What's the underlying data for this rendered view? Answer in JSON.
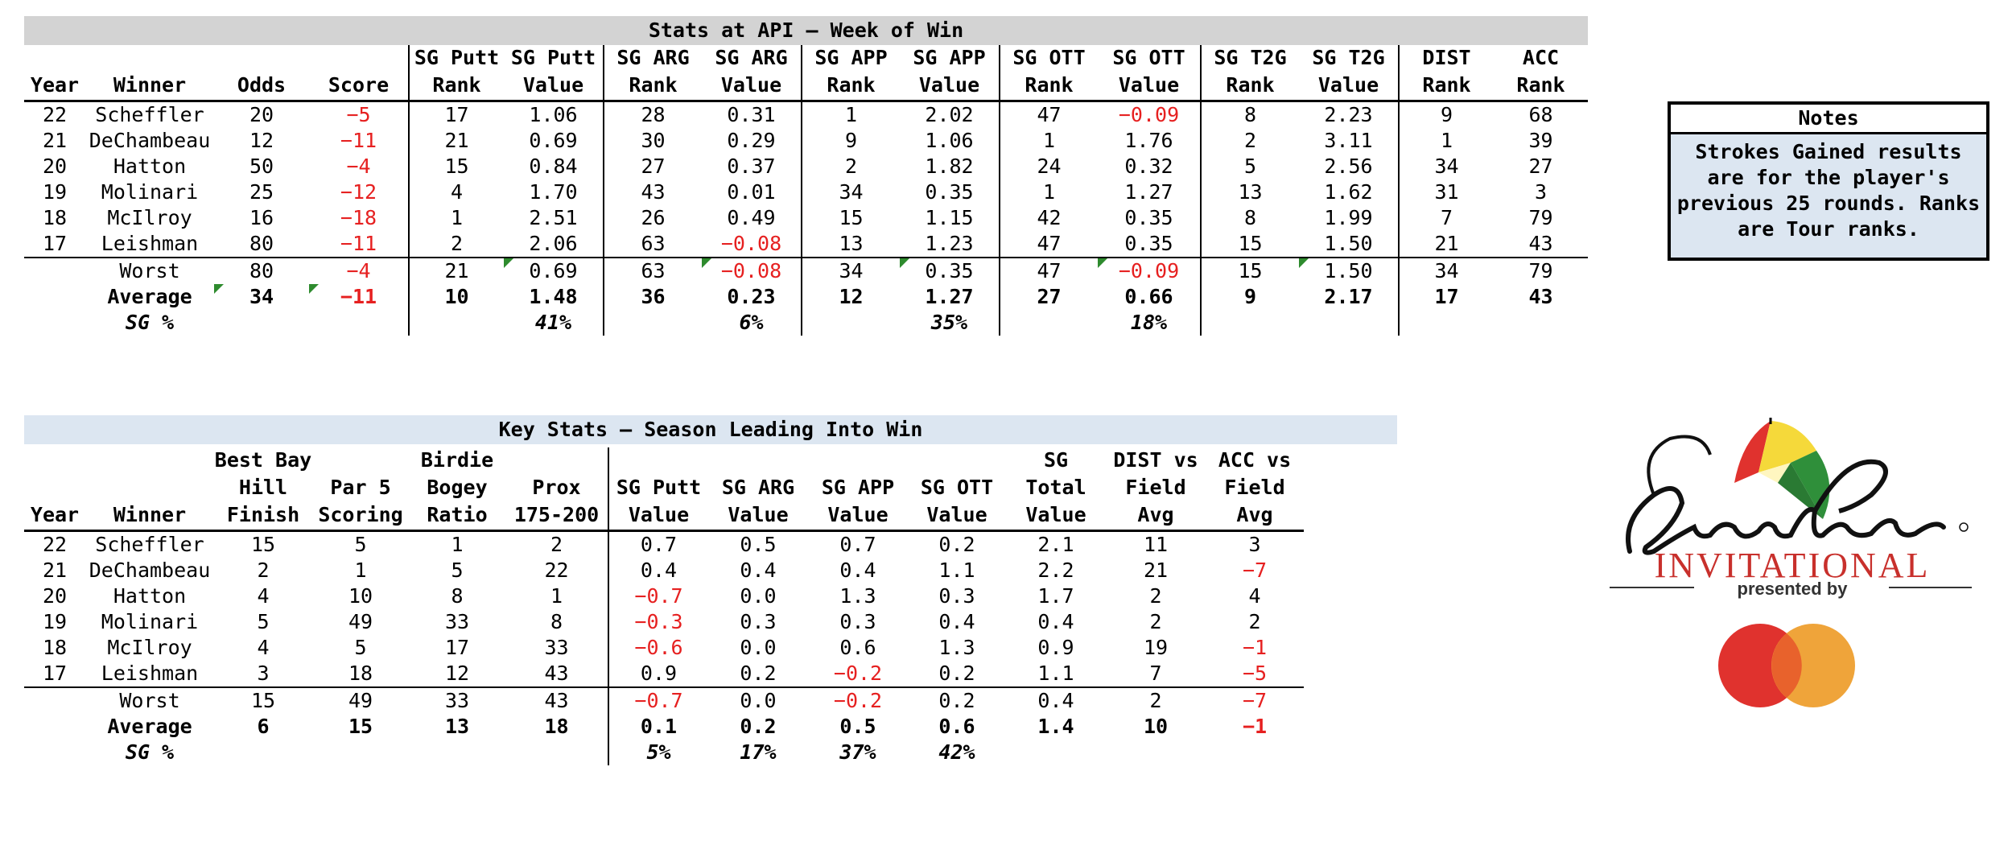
{
  "table1": {
    "title": "Stats at API – Week of Win",
    "headers": [
      [
        "",
        "Year"
      ],
      [
        "",
        "Winner"
      ],
      [
        "",
        "Odds"
      ],
      [
        "",
        "Score"
      ],
      [
        "SG Putt",
        "Rank"
      ],
      [
        "SG Putt",
        "Value"
      ],
      [
        "SG ARG",
        "Rank"
      ],
      [
        "SG ARG",
        "Value"
      ],
      [
        "SG APP",
        "Rank"
      ],
      [
        "SG APP",
        "Value"
      ],
      [
        "SG OTT",
        "Rank"
      ],
      [
        "SG OTT",
        "Value"
      ],
      [
        "SG T2G",
        "Rank"
      ],
      [
        "SG T2G",
        "Value"
      ],
      [
        "DIST",
        "Rank"
      ],
      [
        "ACC",
        "Rank"
      ]
    ],
    "rows": [
      [
        "22",
        "Scheffler",
        "20",
        "−5",
        "17",
        "1.06",
        "28",
        "0.31",
        "1",
        "2.02",
        "47",
        "−0.09",
        "8",
        "2.23",
        "9",
        "68"
      ],
      [
        "21",
        "DeChambeau",
        "12",
        "−11",
        "21",
        "0.69",
        "30",
        "0.29",
        "9",
        "1.06",
        "1",
        "1.76",
        "2",
        "3.11",
        "1",
        "39"
      ],
      [
        "20",
        "Hatton",
        "50",
        "−4",
        "15",
        "0.84",
        "27",
        "0.37",
        "2",
        "1.82",
        "24",
        "0.32",
        "5",
        "2.56",
        "34",
        "27"
      ],
      [
        "19",
        "Molinari",
        "25",
        "−12",
        "4",
        "1.70",
        "43",
        "0.01",
        "34",
        "0.35",
        "1",
        "1.27",
        "13",
        "1.62",
        "31",
        "3"
      ],
      [
        "18",
        "McIlroy",
        "16",
        "−18",
        "1",
        "2.51",
        "26",
        "0.49",
        "15",
        "1.15",
        "42",
        "0.35",
        "8",
        "1.99",
        "7",
        "79"
      ],
      [
        "17",
        "Leishman",
        "80",
        "−11",
        "2",
        "2.06",
        "63",
        "−0.08",
        "13",
        "1.23",
        "47",
        "0.35",
        "15",
        "1.50",
        "21",
        "43"
      ]
    ],
    "worst": [
      "",
      "Worst",
      "80",
      "−4",
      "21",
      "0.69",
      "63",
      "−0.08",
      "34",
      "0.35",
      "47",
      "−0.09",
      "15",
      "1.50",
      "34",
      "79"
    ],
    "average": [
      "",
      "Average",
      "34",
      "−11",
      "10",
      "1.48",
      "36",
      "0.23",
      "12",
      "1.27",
      "27",
      "0.66",
      "9",
      "2.17",
      "17",
      "43"
    ],
    "sg_pct": {
      "label": "SG %",
      "putt": "41%",
      "arg": "6%",
      "app": "35%",
      "ott": "18%"
    }
  },
  "table2": {
    "title": "Key Stats – Season Leading Into Win",
    "headers": [
      [
        "",
        "",
        "Year"
      ],
      [
        "",
        "",
        "Winner"
      ],
      [
        "Best Bay",
        "Hill",
        "Finish"
      ],
      [
        "",
        "Par 5",
        "Scoring"
      ],
      [
        "Birdie",
        "Bogey",
        "Ratio"
      ],
      [
        "",
        "Prox",
        "175-200"
      ],
      [
        "",
        "SG Putt",
        "Value"
      ],
      [
        "",
        "SG ARG",
        "Value"
      ],
      [
        "",
        "SG APP",
        "Value"
      ],
      [
        "",
        "SG OTT",
        "Value"
      ],
      [
        "SG",
        "Total",
        "Value"
      ],
      [
        "DIST vs",
        "Field",
        "Avg"
      ],
      [
        "ACC vs",
        "Field",
        "Avg"
      ]
    ],
    "rows": [
      [
        "22",
        "Scheffler",
        "15",
        "5",
        "1",
        "2",
        "0.7",
        "0.5",
        "0.7",
        "0.2",
        "2.1",
        "11",
        "3"
      ],
      [
        "21",
        "DeChambeau",
        "2",
        "1",
        "5",
        "22",
        "0.4",
        "0.4",
        "0.4",
        "1.1",
        "2.2",
        "21",
        "−7"
      ],
      [
        "20",
        "Hatton",
        "4",
        "10",
        "8",
        "1",
        "−0.7",
        "0.0",
        "1.3",
        "0.3",
        "1.7",
        "2",
        "4"
      ],
      [
        "19",
        "Molinari",
        "5",
        "49",
        "33",
        "8",
        "−0.3",
        "0.3",
        "0.3",
        "0.4",
        "0.4",
        "2",
        "2"
      ],
      [
        "18",
        "McIlroy",
        "4",
        "5",
        "17",
        "33",
        "−0.6",
        "0.0",
        "0.6",
        "1.3",
        "0.9",
        "19",
        "−1"
      ],
      [
        "17",
        "Leishman",
        "3",
        "18",
        "12",
        "43",
        "0.9",
        "0.2",
        "−0.2",
        "0.2",
        "1.1",
        "7",
        "−5"
      ]
    ],
    "worst": [
      "",
      "Worst",
      "15",
      "49",
      "33",
      "43",
      "−0.7",
      "0.0",
      "−0.2",
      "0.2",
      "0.4",
      "2",
      "−7"
    ],
    "average": [
      "",
      "Average",
      "6",
      "15",
      "13",
      "18",
      "0.1",
      "0.2",
      "0.5",
      "0.6",
      "1.4",
      "10",
      "−1"
    ],
    "sg_pct": {
      "label": "SG %",
      "putt": "5%",
      "arg": "17%",
      "app": "37%",
      "ott": "42%"
    }
  },
  "notes": {
    "title": "Notes",
    "body": "Strokes Gained results are for the player's previous 25 rounds. Ranks are Tour ranks."
  },
  "logo": {
    "name": "Arnold Palmer",
    "line1": "INVITATIONAL",
    "line2": "presented by",
    "colors": {
      "red": "#e0322e",
      "yellow": "#f5d93a",
      "green": "#2f8f3a",
      "mc_red": "#e0322e",
      "mc_orange": "#efa43a",
      "text_red": "#c8302c"
    }
  },
  "colors": {
    "negative": "#e62020",
    "banner1": "#d3d3d3",
    "banner2": "#dce6f1",
    "notes_bg": "#dce6f1",
    "flag": "#2e8b2e"
  }
}
